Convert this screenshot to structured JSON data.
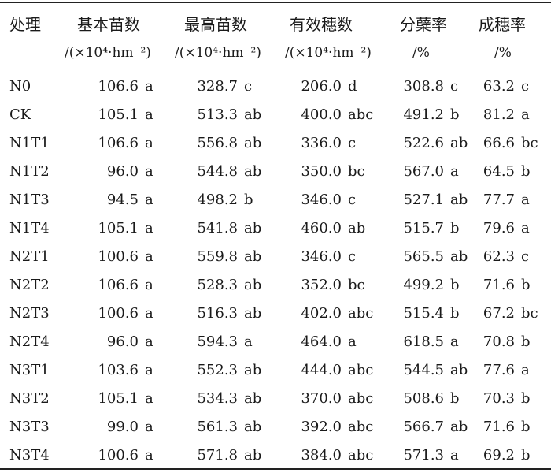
{
  "table": {
    "headers": [
      {
        "title": "处理",
        "unit": ""
      },
      {
        "title": "基本苗数",
        "unit": "/(×10⁴·hm⁻²)"
      },
      {
        "title": "最高苗数",
        "unit": "/(×10⁴·hm⁻²)"
      },
      {
        "title": "有效穗数",
        "unit": "/(×10⁴·hm⁻²)"
      },
      {
        "title": "分蘖率",
        "unit": "/%"
      },
      {
        "title": "成穗率",
        "unit": "/%"
      }
    ],
    "rows": [
      {
        "treatment": "N0",
        "basic": [
          "106.6",
          "a"
        ],
        "max": [
          "328.7",
          "c"
        ],
        "eff": [
          "206.0",
          "d"
        ],
        "till": [
          "308.8",
          "c"
        ],
        "ear": [
          "63.2",
          "c"
        ]
      },
      {
        "treatment": "CK",
        "basic": [
          "105.1",
          "a"
        ],
        "max": [
          "513.3",
          "ab"
        ],
        "eff": [
          "400.0",
          "abc"
        ],
        "till": [
          "491.2",
          "b"
        ],
        "ear": [
          "81.2",
          "a"
        ]
      },
      {
        "treatment": "N1T1",
        "basic": [
          "106.6",
          "a"
        ],
        "max": [
          "556.8",
          "ab"
        ],
        "eff": [
          "336.0",
          "c"
        ],
        "till": [
          "522.6",
          "ab"
        ],
        "ear": [
          "66.6",
          "bc"
        ]
      },
      {
        "treatment": "N1T2",
        "basic": [
          "96.0",
          "a"
        ],
        "max": [
          "544.8",
          "ab"
        ],
        "eff": [
          "350.0",
          "bc"
        ],
        "till": [
          "567.0",
          "a"
        ],
        "ear": [
          "64.5",
          "b"
        ]
      },
      {
        "treatment": "N1T3",
        "basic": [
          "94.5",
          "a"
        ],
        "max": [
          "498.2",
          "b"
        ],
        "eff": [
          "346.0",
          "c"
        ],
        "till": [
          "527.1",
          "ab"
        ],
        "ear": [
          "77.7",
          "a"
        ]
      },
      {
        "treatment": "N1T4",
        "basic": [
          "105.1",
          "a"
        ],
        "max": [
          "541.8",
          "ab"
        ],
        "eff": [
          "460.0",
          "ab"
        ],
        "till": [
          "515.7",
          "b"
        ],
        "ear": [
          "79.6",
          "a"
        ]
      },
      {
        "treatment": "N2T1",
        "basic": [
          "100.6",
          "a"
        ],
        "max": [
          "559.8",
          "ab"
        ],
        "eff": [
          "346.0",
          "c"
        ],
        "till": [
          "565.5",
          "ab"
        ],
        "ear": [
          "62.3",
          "c"
        ]
      },
      {
        "treatment": "N2T2",
        "basic": [
          "106.6",
          "a"
        ],
        "max": [
          "528.3",
          "ab"
        ],
        "eff": [
          "352.0",
          "bc"
        ],
        "till": [
          "499.2",
          "b"
        ],
        "ear": [
          "71.6",
          "b"
        ]
      },
      {
        "treatment": "N2T3",
        "basic": [
          "100.6",
          "a"
        ],
        "max": [
          "516.3",
          "ab"
        ],
        "eff": [
          "402.0",
          "abc"
        ],
        "till": [
          "515.4",
          "b"
        ],
        "ear": [
          "67.2",
          "bc"
        ]
      },
      {
        "treatment": "N2T4",
        "basic": [
          "96.0",
          "a"
        ],
        "max": [
          "594.3",
          "a"
        ],
        "eff": [
          "464.0",
          "a"
        ],
        "till": [
          "618.5",
          "a"
        ],
        "ear": [
          "70.8",
          "b"
        ]
      },
      {
        "treatment": "N3T1",
        "basic": [
          "103.6",
          "a"
        ],
        "max": [
          "552.3",
          "ab"
        ],
        "eff": [
          "444.0",
          "abc"
        ],
        "till": [
          "544.5",
          "ab"
        ],
        "ear": [
          "77.6",
          "a"
        ]
      },
      {
        "treatment": "N3T2",
        "basic": [
          "105.1",
          "a"
        ],
        "max": [
          "534.3",
          "ab"
        ],
        "eff": [
          "370.0",
          "abc"
        ],
        "till": [
          "508.6",
          "b"
        ],
        "ear": [
          "70.3",
          "b"
        ]
      },
      {
        "treatment": "N3T3",
        "basic": [
          "99.0",
          "a"
        ],
        "max": [
          "561.3",
          "ab"
        ],
        "eff": [
          "392.0",
          "abc"
        ],
        "till": [
          "566.7",
          "ab"
        ],
        "ear": [
          "71.6",
          "b"
        ]
      },
      {
        "treatment": "N3T4",
        "basic": [
          "100.6",
          "a"
        ],
        "max": [
          "571.8",
          "ab"
        ],
        "eff": [
          "384.0",
          "abc"
        ],
        "till": [
          "571.3",
          "a"
        ],
        "ear": [
          "69.2",
          "b"
        ]
      }
    ]
  }
}
